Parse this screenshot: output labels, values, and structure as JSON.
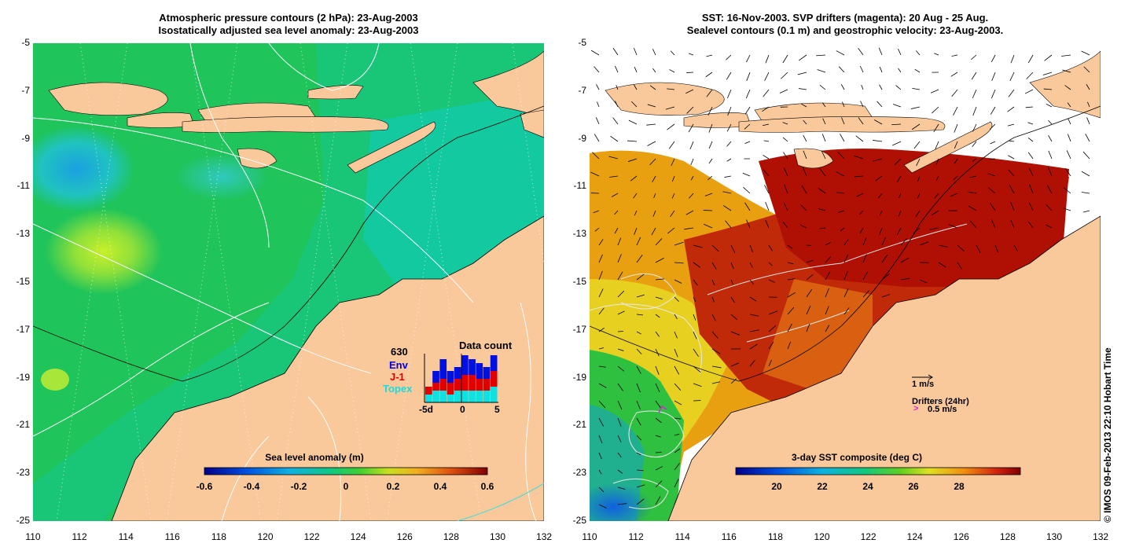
{
  "left_panel": {
    "title_line1": "Atmospheric pressure contours (2 hPa): 23-Aug-2003",
    "title_line2": "Isostatically adjusted sea level anomaly: 23-Aug-2003",
    "colorbar": {
      "title": "Sea level anomaly (m)",
      "ticks": [
        "-0.6",
        "-0.4",
        "-0.2",
        "0",
        "0.2",
        "0.4",
        "0.6"
      ]
    },
    "data_count": {
      "title": "Data count",
      "total": "630",
      "env_label": "Env",
      "j1_label": "J-1",
      "topex_label": "Topex",
      "axis_left": "-5d",
      "axis_mid": "0",
      "axis_right": "5",
      "topex": [
        2,
        3,
        3,
        2,
        3,
        3,
        3,
        3,
        3,
        4
      ],
      "j1": [
        2,
        2,
        3,
        3,
        3,
        4,
        4,
        3,
        3,
        4
      ],
      "env": [
        0,
        3,
        5,
        3,
        3,
        5,
        4,
        4,
        3,
        4
      ]
    }
  },
  "right_panel": {
    "title_line1": "SST: 16-Nov-2003. SVP drifters (magenta): 20 Aug - 25 Aug.",
    "title_line2": "Sealevel contours (0.1 m) and geostrophic velocity: 23-Aug-2003.",
    "colorbar": {
      "title": "3-day SST composite (deg C)",
      "ticks": [
        "20",
        "22",
        "24",
        "26",
        "28"
      ]
    },
    "legend": {
      "velocity_scale": "1 m/s",
      "drifters_label": "Drifters (24hr)",
      "drifters_scale": "0.5 m/s",
      "drifter_glyph": ">"
    }
  },
  "axes": {
    "lat_labels": [
      "-5",
      "-7",
      "-9",
      "-11",
      "-13",
      "-15",
      "-17",
      "-19",
      "-21",
      "-23",
      "-25"
    ],
    "lon_labels": [
      "110",
      "112",
      "114",
      "116",
      "118",
      "120",
      "122",
      "124",
      "126",
      "128",
      "130",
      "132"
    ]
  },
  "copyright": "© IMOS 09-Feb-2013 22:10 Hobart Time",
  "colors": {
    "land": "#f9c89b",
    "sea_green": "#1fc45a",
    "sea_teal": "#12c9a0",
    "sst_red": "#b81306",
    "drifter": "#e020e0"
  }
}
